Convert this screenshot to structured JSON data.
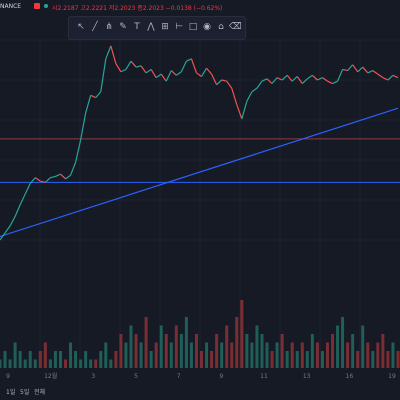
{
  "header": {
    "exchange": "NANCE",
    "ohlc": "시2.2187 고2.2221 저2.2023 종2.2023 −0.0138 (−0.62%)"
  },
  "toolbar": {
    "icons": [
      "cursor-icon",
      "trendline-icon",
      "pitchfork-icon",
      "brush-icon",
      "text-icon",
      "pattern-icon",
      "projection-icon",
      "measure-icon",
      "rectangle-icon",
      "eye-icon",
      "lock-icon",
      "trash-icon"
    ]
  },
  "timeframes": {
    "one_day": "1일",
    "five_days": "5일",
    "all": "전체"
  },
  "chart_data": {
    "type": "line",
    "x_tick_labels": [
      "9",
      "12월",
      "3",
      "5",
      "7",
      "9",
      "11",
      "13",
      "16",
      "19"
    ],
    "price_series": [
      0.0,
      0.6,
      1.2,
      2.0,
      3.0,
      3.9,
      4.8,
      5.3,
      5.0,
      4.9,
      5.3,
      5.4,
      5.6,
      5.2,
      5.5,
      6.6,
      8.5,
      10.8,
      12.3,
      12.1,
      12.6,
      15.4,
      16.5,
      15.0,
      14.3,
      14.5,
      15.2,
      14.7,
      14.8,
      14.2,
      14.5,
      13.8,
      14.1,
      13.5,
      14.4,
      14.0,
      14.3,
      15.2,
      15.4,
      14.2,
      13.9,
      14.6,
      14.1,
      13.2,
      13.6,
      13.5,
      12.9,
      11.5,
      10.3,
      11.8,
      12.6,
      12.9,
      13.5,
      13.7,
      13.3,
      13.8,
      13.6,
      14.0,
      13.5,
      13.9,
      13.3,
      13.7,
      14.0,
      13.6,
      13.8,
      13.5,
      13.3,
      13.5,
      14.5,
      14.4,
      14.9,
      14.3,
      14.7,
      14.2,
      14.4,
      14.1,
      13.8,
      13.6,
      14.0,
      13.8
    ],
    "volume_series": [
      1,
      2,
      1,
      3,
      2,
      1,
      2,
      1,
      2,
      3,
      1,
      2,
      2,
      1,
      3,
      2,
      1,
      2,
      1,
      1,
      2,
      3,
      1,
      2,
      4,
      3,
      5,
      4,
      3,
      6,
      2,
      3,
      5,
      4,
      3,
      5,
      4,
      6,
      3,
      4,
      2,
      3,
      2,
      4,
      3,
      5,
      3,
      6,
      8,
      4,
      3,
      5,
      4,
      3,
      2,
      3,
      4,
      2,
      3,
      2,
      3,
      2,
      4,
      3,
      2,
      3,
      4,
      5,
      6,
      3,
      4,
      2,
      5,
      3,
      2,
      3,
      4,
      2,
      3,
      2
    ],
    "horizontal_levels": [
      8.6,
      4.9
    ],
    "trendline": {
      "start": [
        0,
        0.3
      ],
      "end": [
        79,
        11.2
      ]
    }
  }
}
